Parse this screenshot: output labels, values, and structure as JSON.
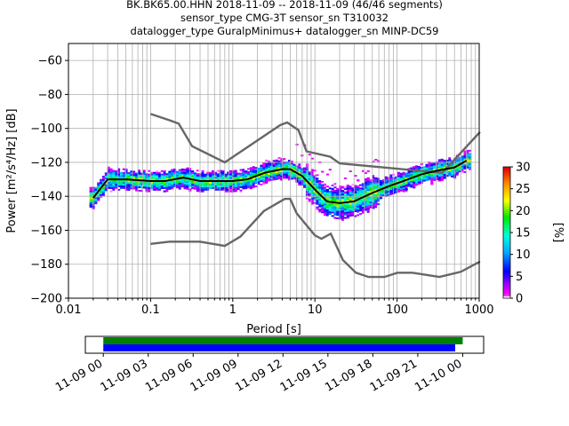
{
  "title_lines": [
    "BK.BK65.00.HHN   2018-11-09 -- 2018-11-09  (46/46 segments)",
    "sensor_type CMG-3T sensor_sn T310032",
    "datalogger_type GuralpMinimus+ datalogger_sn MINP-DC59"
  ],
  "chart_data": [
    {
      "type": "heatmap",
      "title": "BK.BK65.00.HHN   2018-11-09 -- 2018-11-09  (46/46 segments)",
      "xlabel": "Period [s]",
      "ylabel": "Power [m²/s⁴/Hz] [dB]",
      "x_scale": "log",
      "xlim": [
        0.01,
        1000
      ],
      "ylim": [
        -200,
        -50
      ],
      "x_ticks": [
        "0.01",
        "0.1",
        "1",
        "10",
        "100",
        "1000"
      ],
      "y_ticks": [
        "-60",
        "-80",
        "-100",
        "-120",
        "-140",
        "-160",
        "-180",
        "-200"
      ],
      "grid": true,
      "colorbar": {
        "label": "[%]",
        "min": 0,
        "max": 30,
        "ticks": [
          "0",
          "5",
          "10",
          "15",
          "20",
          "25",
          "30"
        ]
      },
      "series": [
        {
          "name": "",
          "style": "gray model curve (upper)",
          "x": [
            0.1,
            0.17,
            0.22,
            0.32,
            0.8,
            3.8,
            4.6,
            6.3,
            7.9,
            15.4,
            20,
            354.8,
            10000
          ],
          "y": [
            -91.5,
            -95.2,
            -97.2,
            -110.5,
            -120.0,
            -98.0,
            -96.5,
            -101.0,
            -113.5,
            -116.7,
            -120.6,
            -126.2,
            -48.5
          ]
        },
        {
          "name": "",
          "style": "gray model curve (lower)",
          "x": [
            0.1,
            0.17,
            0.4,
            0.8,
            1.24,
            2.4,
            4.3,
            5.0,
            6.0,
            10.0,
            12.0,
            15.6,
            21.9,
            31.6,
            45.0,
            70.0,
            101.0,
            154.0,
            328.0,
            600.0,
            10000.0
          ],
          "y": [
            -168.0,
            -166.7,
            -166.7,
            -169.2,
            -163.7,
            -148.6,
            -141.5,
            -141.5,
            -150.0,
            -163.0,
            -165.0,
            -162.0,
            -177.5,
            -185.0,
            -187.5,
            -187.5,
            -185.0,
            -185.0,
            -187.5,
            -184.4,
            -151.5
          ]
        },
        {
          "name": "",
          "style": "black mode curve",
          "x": [
            0.02,
            0.03,
            0.05,
            0.1,
            0.15,
            0.25,
            0.4,
            0.7,
            1.0,
            1.5,
            2.5,
            4.0,
            5.0,
            7.0,
            10.0,
            14.0,
            20.0,
            30.0,
            50.0,
            80.0,
            120.0,
            200.0,
            300.0,
            500.0,
            700.0
          ],
          "y": [
            -141,
            -130,
            -130,
            -131,
            -131,
            -129,
            -131,
            -131,
            -131,
            -130,
            -126,
            -124,
            -124,
            -128,
            -136,
            -143,
            -144,
            -143,
            -138,
            -134,
            -131,
            -127,
            -125,
            -123,
            -119
          ]
        }
      ]
    },
    {
      "type": "bar",
      "title": "",
      "xlabel": "",
      "ylabel": "",
      "x_ticks": [
        "11-09 00",
        "11-09 03",
        "11-09 06",
        "11-09 09",
        "11-09 12",
        "11-09 15",
        "11-09 18",
        "11-09 21",
        "11-10 00"
      ],
      "xlim_hours": [
        -1.2,
        25.4
      ],
      "series": [
        {
          "name": "",
          "color": "#008000",
          "start_hour": 0.0,
          "end_hour": 24.0
        },
        {
          "name": "",
          "color": "#0000ff",
          "start_hour": 0.0,
          "end_hour": 23.5
        }
      ]
    }
  ]
}
